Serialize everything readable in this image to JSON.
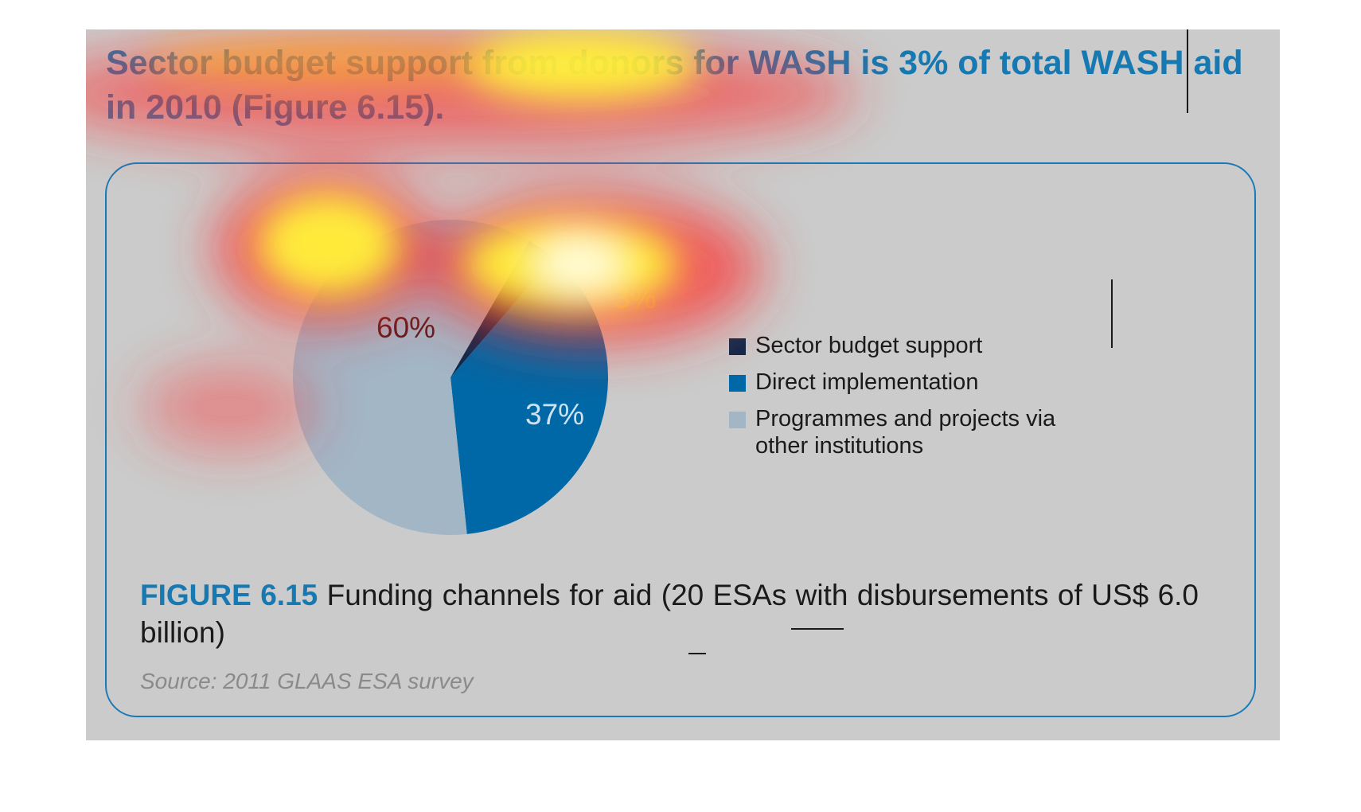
{
  "headline": "Sector budget support from donors for WASH is 3% of total WASH aid in 2010 (Figure 6.15).",
  "colors": {
    "sector_budget_support": "#0d2a4d",
    "direct_implementation": "#0068a6",
    "programmes_projects": "#a3b6c6",
    "accent": "#1779b2"
  },
  "chart_data": {
    "type": "pie",
    "slices": [
      {
        "label": "Sector budget support",
        "value": 3,
        "display": "3%"
      },
      {
        "label": "Direct implementation",
        "value": 37,
        "display": "37%"
      },
      {
        "label": "Programmes and projects via other institutions",
        "value": 60,
        "display": "60%"
      }
    ],
    "legend_placement": "right",
    "legend": [
      "Sector budget support",
      "Direct implementation",
      "Programmes and projects via other institutions"
    ]
  },
  "caption": {
    "figure_number": "FIGURE 6.15",
    "text": " Funding channels for aid (20 ESAs with disbursements of US$ 6.0 billion)"
  },
  "source": "Source: 2011 GLAAS ESA survey"
}
